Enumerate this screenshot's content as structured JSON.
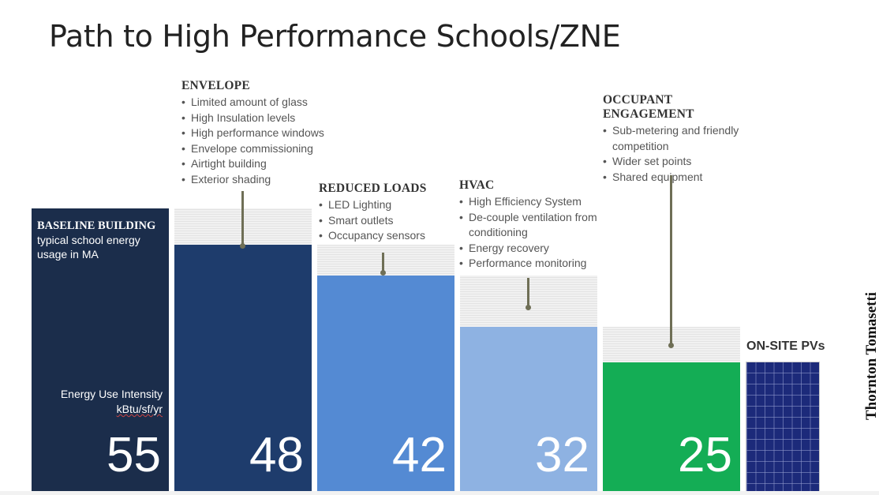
{
  "title": "Path to High Performance Schools/ZNE",
  "chart_data": {
    "type": "bar",
    "categories": [
      "BASELINE BUILDING",
      "ENVELOPE",
      "REDUCED LOADS",
      "HVAC",
      "OCCUPANT ENGAGEMENT"
    ],
    "values": [
      55,
      48,
      42,
      32,
      25
    ],
    "value_labels": [
      "55",
      "48",
      "42",
      "32",
      "25"
    ],
    "ylabel": "Energy Use Intensity kBtu/sf/yr",
    "colors": [
      "#1b2d4b",
      "#1e3c6c",
      "#548ad3",
      "#8eb2e2",
      "#14ad55"
    ]
  },
  "baseline": {
    "heading": "BASELINE BUILDING",
    "subtext": [
      "typical school energy",
      "usage in MA"
    ],
    "eui_label": "Energy Use Intensity",
    "eui_unit": "kBtu/sf/yr"
  },
  "measures": {
    "envelope": {
      "heading": "ENVELOPE",
      "items": [
        "Limited amount of glass",
        "High Insulation levels",
        "High performance windows",
        "Envelope commissioning",
        "Airtight building",
        "Exterior shading"
      ]
    },
    "reduced_loads": {
      "heading": "REDUCED LOADS",
      "items": [
        "LED Lighting",
        "Smart outlets",
        "Occupancy sensors"
      ]
    },
    "hvac": {
      "heading": "HVAC",
      "items": [
        "High Efficiency System",
        "De-couple ventilation from conditioning",
        "Energy recovery",
        "Performance monitoring"
      ]
    },
    "occupant": {
      "heading": "OCCUPANT ENGAGEMENT",
      "items": [
        "Sub-metering and friendly competition",
        "Wider set points",
        "Shared equipment"
      ]
    }
  },
  "pv": {
    "label": "ON-SITE PVs"
  },
  "logo": {
    "text": "Thornton Tomasetti"
  }
}
